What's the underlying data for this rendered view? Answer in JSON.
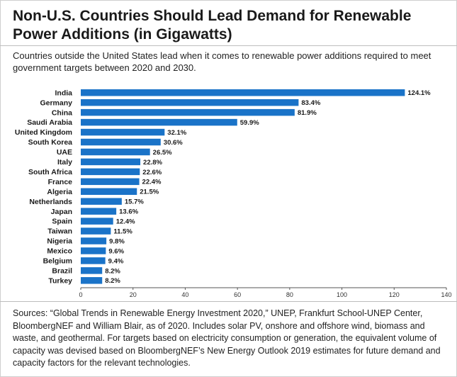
{
  "title": "Non-U.S. Countries Should Lead Demand for Renewable Power Additions (in Gigawatts)",
  "subtitle": "Countries outside the United States lead when it comes to renewable power additions required to meet government targets between 2020 and 2030.",
  "sources": "Sources: “Global Trends in Renewable Energy Investment 2020,” UNEP, Frankfurt School-UNEP Center, BloombergNEF and William Blair, as of 2020. Includes solar PV, onshore and offshore wind, biomass and waste, and geothermal. For targets based on electricity consumption or generation, the equivalent volume of capacity was devised based on BloombergNEF’s New Energy Outlook 2019 estimates for future demand and capacity factors for the relevant technologies.",
  "colors": {
    "bar": "#1a73c8"
  },
  "chart_data": {
    "type": "bar",
    "orientation": "horizontal",
    "categories": [
      "India",
      "Germany",
      "China",
      "Saudi Arabia",
      "United Kingdom",
      "South Korea",
      "UAE",
      "Italy",
      "South Africa",
      "France",
      "Algeria",
      "Netherlands",
      "Japan",
      "Spain",
      "Taiwan",
      "Nigeria",
      "Mexico",
      "Belgium",
      "Brazil",
      "Turkey"
    ],
    "values": [
      124.1,
      83.4,
      81.9,
      59.9,
      32.1,
      30.6,
      26.5,
      22.8,
      22.6,
      22.4,
      21.5,
      15.7,
      13.6,
      12.4,
      11.5,
      9.8,
      9.6,
      9.4,
      8.2,
      8.2
    ],
    "value_labels": [
      "124.1%",
      "83.4%",
      "81.9%",
      "59.9%",
      "32.1%",
      "30.6%",
      "26.5%",
      "22.8%",
      "22.6%",
      "22.4%",
      "21.5%",
      "15.7%",
      "13.6%",
      "12.4%",
      "11.5%",
      "9.8%",
      "9.6%",
      "9.4%",
      "8.2%",
      "8.2%"
    ],
    "xlim": [
      0,
      140
    ],
    "xticks": [
      0,
      20,
      40,
      60,
      80,
      100,
      120,
      140
    ],
    "grid": false,
    "legend": "none"
  }
}
